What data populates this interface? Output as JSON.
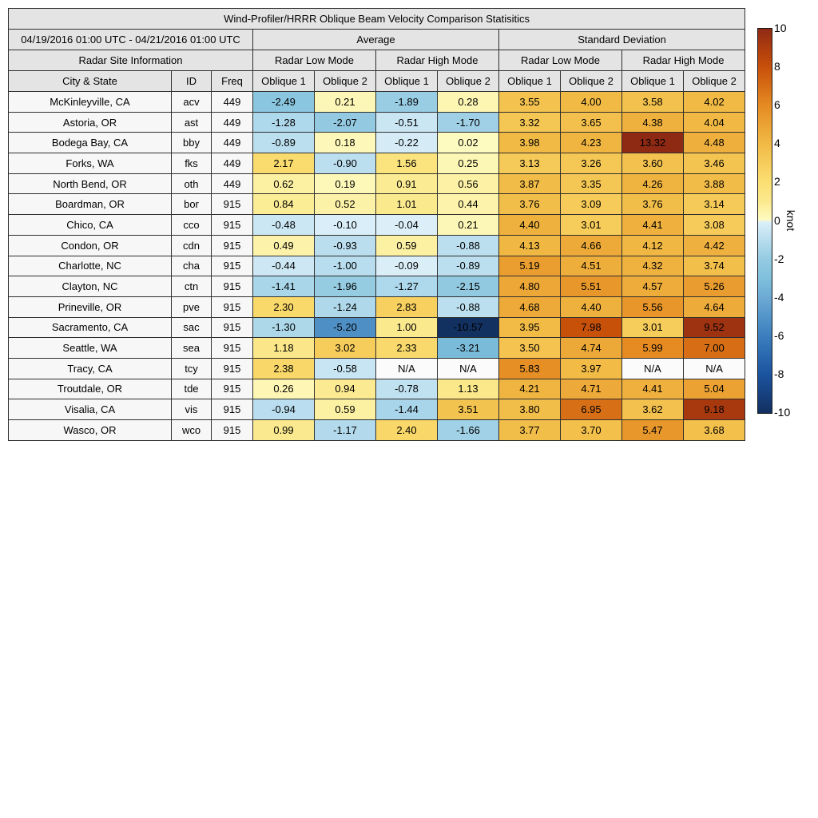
{
  "header": {
    "period": "04/19/2016 01:00 UTC - 04/21/2016 01:00 UTC",
    "average_label": "Average",
    "std_label": "Standard Deviation",
    "site_info_label": "Radar Site Information",
    "mode_headers": [
      "Radar Low Mode",
      "Radar High Mode",
      "Radar Low Mode",
      "Radar High Mode"
    ]
  },
  "chart_data": {
    "type": "heatmap",
    "title": "Wind-Profiler/HRRR Oblique Beam Velocity Comparison Statisitics",
    "unit": "knot",
    "value_range": [
      -10,
      10
    ],
    "na_text": "N/A",
    "column_headers": [
      "City & State",
      "ID",
      "Freq",
      "Oblique 1",
      "Oblique 2",
      "Oblique 1",
      "Oblique 2",
      "Oblique 1",
      "Oblique 2",
      "Oblique 1",
      "Oblique 2"
    ],
    "column_group_labels": [
      "Average: Radar Low Mode",
      "Average: Radar High Mode",
      "Standard Deviation: Radar Low Mode",
      "Standard Deviation: Radar High Mode"
    ],
    "rows": [
      {
        "city": "McKinleyville, CA",
        "id": "acv",
        "freq": "449",
        "values": [
          "-2.49",
          "0.21",
          "-1.89",
          "0.28",
          "3.55",
          "4.00",
          "3.58",
          "4.02"
        ]
      },
      {
        "city": "Astoria, OR",
        "id": "ast",
        "freq": "449",
        "values": [
          "-1.28",
          "-2.07",
          "-0.51",
          "-1.70",
          "3.32",
          "3.65",
          "4.38",
          "4.04"
        ]
      },
      {
        "city": "Bodega Bay, CA",
        "id": "bby",
        "freq": "449",
        "values": [
          "-0.89",
          "0.18",
          "-0.22",
          "0.02",
          "3.98",
          "4.23",
          "13.32",
          "4.48"
        ]
      },
      {
        "city": "Forks, WA",
        "id": "fks",
        "freq": "449",
        "values": [
          "2.17",
          "-0.90",
          "1.56",
          "0.25",
          "3.13",
          "3.26",
          "3.60",
          "3.46"
        ]
      },
      {
        "city": "North Bend, OR",
        "id": "oth",
        "freq": "449",
        "values": [
          "0.62",
          "0.19",
          "0.91",
          "0.56",
          "3.87",
          "3.35",
          "4.26",
          "3.88"
        ]
      },
      {
        "city": "Boardman, OR",
        "id": "bor",
        "freq": "915",
        "values": [
          "0.84",
          "0.52",
          "1.01",
          "0.44",
          "3.76",
          "3.09",
          "3.76",
          "3.14"
        ]
      },
      {
        "city": "Chico, CA",
        "id": "cco",
        "freq": "915",
        "values": [
          "-0.48",
          "-0.10",
          "-0.04",
          "0.21",
          "4.40",
          "3.01",
          "4.41",
          "3.08"
        ]
      },
      {
        "city": "Condon, OR",
        "id": "cdn",
        "freq": "915",
        "values": [
          "0.49",
          "-0.93",
          "0.59",
          "-0.88",
          "4.13",
          "4.66",
          "4.12",
          "4.42"
        ]
      },
      {
        "city": "Charlotte, NC",
        "id": "cha",
        "freq": "915",
        "values": [
          "-0.44",
          "-1.00",
          "-0.09",
          "-0.89",
          "5.19",
          "4.51",
          "4.32",
          "3.74"
        ]
      },
      {
        "city": "Clayton, NC",
        "id": "ctn",
        "freq": "915",
        "values": [
          "-1.41",
          "-1.96",
          "-1.27",
          "-2.15",
          "4.80",
          "5.51",
          "4.57",
          "5.26"
        ]
      },
      {
        "city": "Prineville, OR",
        "id": "pve",
        "freq": "915",
        "values": [
          "2.30",
          "-1.24",
          "2.83",
          "-0.88",
          "4.68",
          "4.40",
          "5.56",
          "4.64"
        ]
      },
      {
        "city": "Sacramento, CA",
        "id": "sac",
        "freq": "915",
        "values": [
          "-1.30",
          "-5.20",
          "1.00",
          "-10.57",
          "3.95",
          "7.98",
          "3.01",
          "9.52"
        ]
      },
      {
        "city": "Seattle, WA",
        "id": "sea",
        "freq": "915",
        "values": [
          "1.18",
          "3.02",
          "2.33",
          "-3.21",
          "3.50",
          "4.74",
          "5.99",
          "7.00"
        ]
      },
      {
        "city": "Tracy, CA",
        "id": "tcy",
        "freq": "915",
        "values": [
          "2.38",
          "-0.58",
          "N/A",
          "N/A",
          "5.83",
          "3.97",
          "N/A",
          "N/A"
        ]
      },
      {
        "city": "Troutdale, OR",
        "id": "tde",
        "freq": "915",
        "values": [
          "0.26",
          "0.94",
          "-0.78",
          "1.13",
          "4.21",
          "4.71",
          "4.41",
          "5.04"
        ]
      },
      {
        "city": "Visalia, CA",
        "id": "vis",
        "freq": "915",
        "values": [
          "-0.94",
          "0.59",
          "-1.44",
          "3.51",
          "3.80",
          "6.95",
          "3.62",
          "9.18"
        ]
      },
      {
        "city": "Wasco, OR",
        "id": "wco",
        "freq": "915",
        "values": [
          "0.99",
          "-1.17",
          "2.40",
          "-1.66",
          "3.77",
          "3.70",
          "5.47",
          "3.68"
        ]
      }
    ],
    "colorbar": {
      "label": "knot",
      "ticks": [
        "10",
        "8",
        "6",
        "4",
        "2",
        "0",
        "-2",
        "-4",
        "-6",
        "-8",
        "-10"
      ],
      "tick_values": [
        10,
        8,
        6,
        4,
        2,
        0,
        -2,
        -4,
        -6,
        -8,
        -10
      ],
      "negative_anchors": [
        [
          -10,
          "#123060"
        ],
        [
          -8,
          "#1b539f"
        ],
        [
          -6,
          "#3a7ebd"
        ],
        [
          -4,
          "#6caad4"
        ],
        [
          -3,
          "#7fc0dc"
        ],
        [
          -2,
          "#94cbe2"
        ],
        [
          -1,
          "#b8ddee"
        ],
        [
          0,
          "#ddf0f9"
        ]
      ],
      "positive_anchors": [
        [
          0,
          "#fefbc2"
        ],
        [
          1,
          "#fbe98e"
        ],
        [
          2,
          "#fbdf72"
        ],
        [
          4,
          "#f1ba45"
        ],
        [
          6,
          "#e58b22"
        ],
        [
          8,
          "#c8500a"
        ],
        [
          9,
          "#ae3c0e"
        ],
        [
          10,
          "#8e2a14"
        ]
      ]
    }
  },
  "styles": {
    "header_bg": "#e4e4e4",
    "label_bg": "#f7f7f7",
    "na_bg": "#fbfbfb",
    "border_color": "#2e2e2e",
    "text_color": "#000000"
  }
}
